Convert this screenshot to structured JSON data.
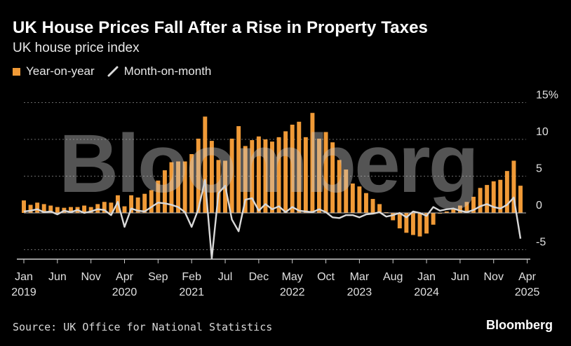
{
  "title": "UK House Prices Fall After a Rise in Property Taxes",
  "subtitle": "UK house price index",
  "legend": {
    "yoy": "Year-on-year",
    "mom": "Month-on-month"
  },
  "source": "Source: UK Office for National Statistics",
  "brand": "Bloomberg",
  "watermark": "Bloomberg",
  "colors": {
    "bar": "#f09a37",
    "line": "#d9d9d9",
    "background": "#000000",
    "grid": "#666666"
  },
  "chart_data": {
    "type": "bar",
    "title": "UK House Prices Fall After a Rise in Property Taxes",
    "ylabel": "UK house price index",
    "ylim": [
      -6.5,
      15
    ],
    "yticks": [
      {
        "value": 15,
        "label": "15%"
      },
      {
        "value": 10,
        "label": "10"
      },
      {
        "value": 5,
        "label": "5"
      },
      {
        "value": 0,
        "label": "0"
      },
      {
        "value": -5,
        "label": "-5"
      }
    ],
    "x_start": "2019-01",
    "xticks": [
      {
        "index": 0,
        "label": "Jan",
        "year": "2019"
      },
      {
        "index": 5,
        "label": "Jun",
        "year": ""
      },
      {
        "index": 10,
        "label": "Nov",
        "year": ""
      },
      {
        "index": 15,
        "label": "Apr",
        "year": "2020"
      },
      {
        "index": 20,
        "label": "Sep",
        "year": ""
      },
      {
        "index": 25,
        "label": "Feb",
        "year": "2021"
      },
      {
        "index": 30,
        "label": "Jul",
        "year": ""
      },
      {
        "index": 35,
        "label": "Dec",
        "year": ""
      },
      {
        "index": 40,
        "label": "May",
        "year": "2022"
      },
      {
        "index": 45,
        "label": "Oct",
        "year": ""
      },
      {
        "index": 50,
        "label": "Mar",
        "year": "2023"
      },
      {
        "index": 55,
        "label": "Aug",
        "year": ""
      },
      {
        "index": 60,
        "label": "Jan",
        "year": "2024"
      },
      {
        "index": 65,
        "label": "Jun",
        "year": ""
      },
      {
        "index": 70,
        "label": "Nov",
        "year": ""
      },
      {
        "index": 75,
        "label": "Apr",
        "year": "2025"
      }
    ],
    "series": [
      {
        "name": "Year-on-year",
        "kind": "bar",
        "values": [
          1.7,
          1.1,
          1.4,
          1.2,
          1.0,
          0.8,
          0.7,
          0.8,
          0.8,
          1.0,
          0.8,
          1.2,
          1.5,
          1.4,
          2.4,
          0.9,
          2.4,
          2.1,
          2.6,
          3.1,
          4.4,
          5.8,
          6.9,
          7.0,
          7.0,
          8.0,
          10.1,
          13.1,
          9.8,
          7.2,
          7.1,
          10.1,
          11.8,
          9.1,
          9.9,
          10.4,
          10.0,
          9.7,
          10.3,
          11.1,
          12.0,
          12.4,
          10.3,
          13.6,
          10.1,
          11.0,
          9.6,
          7.2,
          5.9,
          4.0,
          3.6,
          2.7,
          1.9,
          1.2,
          0.1,
          -1.0,
          -2.1,
          -2.7,
          -3.0,
          -3.2,
          -2.8,
          -1.6,
          -0.1,
          0.2,
          0.6,
          1.0,
          1.5,
          2.2,
          3.4,
          3.8,
          4.3,
          4.5,
          5.7,
          7.1,
          3.7
        ],
        "color": "#f09a37"
      },
      {
        "name": "Month-on-month",
        "kind": "line",
        "values": [
          0.2,
          0.3,
          0.5,
          0.1,
          0.2,
          -0.2,
          0.3,
          0.1,
          0.4,
          0.0,
          0.2,
          0.5,
          0.4,
          -0.3,
          1.5,
          -1.9,
          0.6,
          0.3,
          0.2,
          0.8,
          1.4,
          1.3,
          1.1,
          0.8,
          0.1,
          -1.9,
          0.5,
          4.5,
          -6.2,
          2.7,
          3.7,
          -0.9,
          -2.5,
          1.8,
          2.0,
          0.3,
          1.2,
          0.5,
          0.9,
          0.1,
          0.8,
          0.3,
          0.2,
          0.1,
          0.5,
          0.1,
          -0.6,
          -0.7,
          -0.3,
          -0.3,
          -0.6,
          -0.2,
          -0.1,
          0.1,
          -0.5,
          -0.3,
          0.0,
          -0.6,
          0.2,
          0.0,
          -0.4,
          0.8,
          0.3,
          0.5,
          0.6,
          0.3,
          0.1,
          0.4,
          0.9,
          1.2,
          0.8,
          0.6,
          1.1,
          2.1,
          -3.5
        ],
        "color": "#d9d9d9"
      }
    ]
  }
}
